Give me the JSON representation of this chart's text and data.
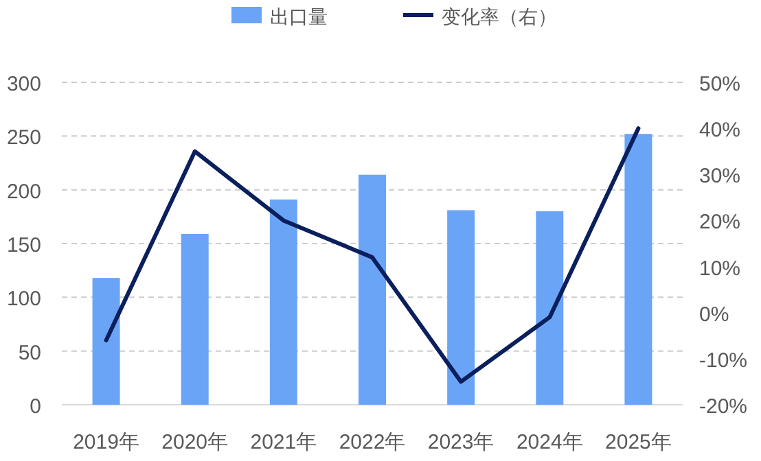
{
  "chart_data": {
    "type": "bar",
    "categories": [
      "2019年",
      "2020年",
      "2021年",
      "2022年",
      "2023年",
      "2024年",
      "2025年"
    ],
    "series": [
      {
        "name": "出口量",
        "color": "#6aa4f7",
        "values": [
          118,
          159,
          191,
          214,
          181,
          180,
          252
        ]
      },
      {
        "name": "变化率（右）",
        "type": "line",
        "axis": "y2",
        "color": "#0a1f5c",
        "values": [
          -6,
          35,
          20,
          12,
          -15,
          -1,
          40
        ]
      }
    ],
    "ylim": [
      0,
      300
    ],
    "yticks": [
      0,
      50,
      100,
      150,
      200,
      250,
      300
    ],
    "y2lim": [
      -20,
      50
    ],
    "y2ticks": [
      {
        "value": -20,
        "label": "-20%"
      },
      {
        "value": -10,
        "label": "-10%"
      },
      {
        "value": 0,
        "label": "0%"
      },
      {
        "value": 10,
        "label": "10%"
      },
      {
        "value": 20,
        "label": "20%"
      },
      {
        "value": 30,
        "label": "30%"
      },
      {
        "value": 40,
        "label": "40%"
      },
      {
        "value": 50,
        "label": "50%"
      }
    ],
    "grid": "y",
    "legend": "top"
  }
}
